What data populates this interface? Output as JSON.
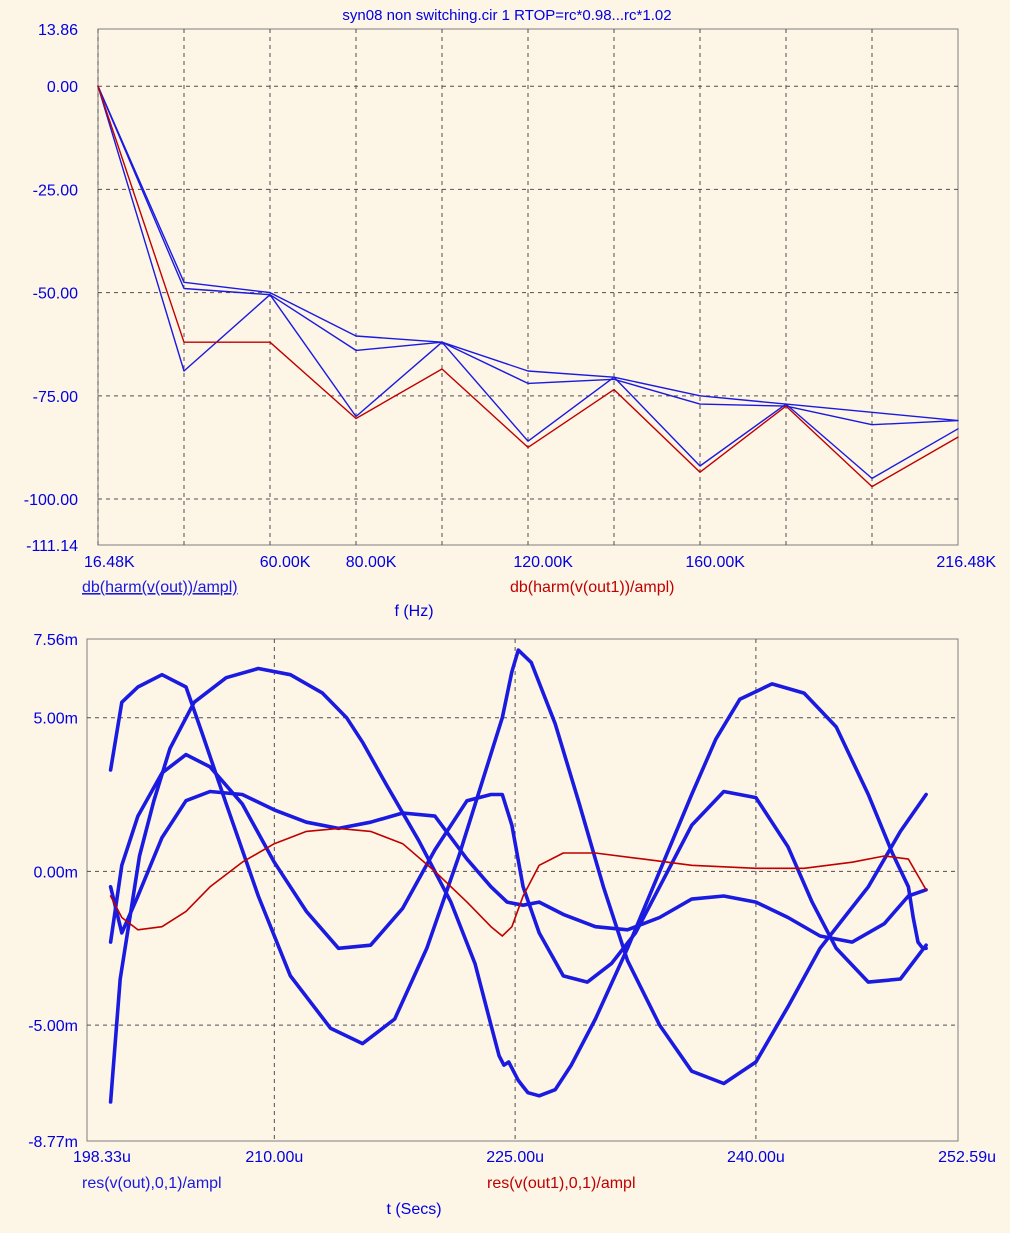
{
  "window": {
    "title": "syn08 non switching.cir 1 RTOP=rc*0.98...rc*1.02"
  },
  "colors": {
    "background": "#fdf5e6",
    "frame": "#808080",
    "grid": "#505050",
    "axis_text": "#0000e0",
    "blue_trace": "#1a1ae0",
    "red_trace": "#c00000"
  },
  "chart_data": [
    {
      "type": "line",
      "title": "syn08 non switching.cir 1 RTOP=rc*0.98...rc*1.02",
      "xlabel": "f (Hz)",
      "ylabel": "",
      "xlim": [
        16480,
        216480
      ],
      "ylim": [
        -111.14,
        13.86
      ],
      "grid": true,
      "x_tick_labels": [
        {
          "x": 16480,
          "label": "16.48K"
        },
        {
          "x": 60000,
          "label": "60.00K"
        },
        {
          "x": 80000,
          "label": "80.00K"
        },
        {
          "x": 120000,
          "label": "120.00K"
        },
        {
          "x": 160000,
          "label": "160.00K"
        },
        {
          "x": 216480,
          "label": "216.48K"
        }
      ],
      "x_grid": [
        16480,
        36480,
        56480,
        76480,
        96480,
        116480,
        136480,
        156480,
        176480,
        196480
      ],
      "y_tick_labels": [
        {
          "y": 13.86,
          "label": "13.86"
        },
        {
          "y": 0,
          "label": "0.00"
        },
        {
          "y": -25,
          "label": "-25.00"
        },
        {
          "y": -50,
          "label": "-50.00"
        },
        {
          "y": -75,
          "label": "-75.00"
        },
        {
          "y": -100,
          "label": "-100.00"
        },
        {
          "y": -111.14,
          "label": "-111.14"
        }
      ],
      "y_grid": [
        0,
        -25,
        -50,
        -75,
        -100
      ],
      "legend": [
        {
          "label": "db(harm(v(out))/ampl)",
          "color": "blue",
          "underlined": true,
          "position": "bottom-left"
        },
        {
          "label": "db(harm(v(out1))/ampl)",
          "color": "red",
          "underlined": false,
          "position": "bottom-center"
        }
      ],
      "x": [
        16480,
        36480,
        56480,
        76480,
        96480,
        116480,
        136480,
        156480,
        176480,
        196480,
        216480
      ],
      "series": [
        {
          "color": "blue",
          "values": [
            0,
            -47.5,
            -50,
            -60.5,
            -62,
            -69,
            -70.5,
            -75,
            -77,
            -79,
            -81
          ]
        },
        {
          "color": "blue",
          "values": [
            0,
            -49,
            -50.5,
            -64,
            -62,
            -72,
            -71,
            -77,
            -77.5,
            -82,
            -81
          ]
        },
        {
          "color": "blue",
          "values": [
            0,
            -69,
            -50.5,
            -80,
            -62,
            -86,
            -70.5,
            -92,
            -77,
            -95,
            -83
          ]
        },
        {
          "color": "red",
          "values": [
            0,
            -62,
            -62,
            -80.5,
            -68.5,
            -87.5,
            -73.5,
            -93.5,
            -77.5,
            -97,
            -85
          ]
        }
      ]
    },
    {
      "type": "line",
      "title": "",
      "xlabel": "t (Secs)",
      "ylabel": "",
      "xlim": [
        198.33,
        252.59
      ],
      "x_unit": "us",
      "ylim": [
        -8.77,
        7.56
      ],
      "y_unit": "mV",
      "grid": true,
      "x_tick_labels": [
        {
          "x": 198.33,
          "label": "198.33u"
        },
        {
          "x": 210.0,
          "label": "210.00u"
        },
        {
          "x": 225.0,
          "label": "225.00u"
        },
        {
          "x": 240.0,
          "label": "240.00u"
        },
        {
          "x": 252.59,
          "label": "252.59u"
        }
      ],
      "x_grid": [
        210.0,
        225.0,
        240.0
      ],
      "y_tick_labels": [
        {
          "y": 7.56,
          "label": "7.56m"
        },
        {
          "y": 5.0,
          "label": "5.00m"
        },
        {
          "y": 0,
          "label": "0.00m"
        },
        {
          "y": -5.0,
          "label": "-5.00m"
        },
        {
          "y": -8.77,
          "label": "-8.77m"
        }
      ],
      "y_grid": [
        5.0,
        0,
        -5.0
      ],
      "legend": [
        {
          "label": "res(v(out),0,1)/ampl",
          "color": "blue",
          "underlined": false,
          "position": "bottom-left"
        },
        {
          "label": "res(v(out1),0,1)/ampl",
          "color": "red",
          "underlined": false,
          "position": "bottom-center"
        }
      ],
      "series": [
        {
          "color": "blue",
          "x": [
            199.8,
            200.1,
            200.4,
            201.0,
            201.6,
            202.5,
            203.5,
            205.0,
            207.0,
            209.0,
            211.0,
            213.0,
            214.5,
            215.5,
            217.0,
            219.0,
            221.0,
            222.5,
            223.5,
            224.0,
            224.3,
            224.6,
            224.9,
            225.2,
            225.5,
            225.8,
            226.5,
            227.5,
            228.5,
            230.0,
            232.0,
            234.0,
            236.0,
            237.5,
            239.0,
            241.0,
            243.0,
            245.0,
            247.0,
            248.5,
            249.5,
            249.8,
            250.1,
            250.4,
            250.6
          ],
          "values": [
            -7.5,
            -5.5,
            -3.5,
            -1.5,
            0.5,
            2.3,
            4.0,
            5.5,
            6.3,
            6.6,
            6.4,
            5.8,
            5.0,
            4.2,
            2.8,
            1.0,
            -1.0,
            -3.0,
            -5.0,
            -6.0,
            -6.3,
            -6.2,
            -6.5,
            -6.8,
            -7.0,
            -7.2,
            -7.3,
            -7.1,
            -6.3,
            -4.8,
            -2.5,
            0.0,
            2.5,
            4.3,
            5.6,
            6.1,
            5.8,
            4.7,
            2.5,
            0.6,
            -0.5,
            -1.5,
            -2.3,
            -2.5,
            -2.5
          ]
        },
        {
          "color": "blue",
          "x": [
            199.8,
            200.5,
            201.5,
            203.0,
            204.5,
            205.5,
            207.0,
            209.0,
            211.0,
            213.5,
            215.5,
            217.5,
            219.5,
            221.5,
            223.0,
            224.2,
            224.8,
            225.2,
            226.0,
            227.5,
            229.0,
            230.5,
            232.0,
            234.0,
            236.0,
            238.0,
            240.0,
            242.0,
            244.0,
            245.5,
            247.0,
            249.0,
            250.6
          ],
          "values": [
            3.3,
            5.5,
            6.0,
            6.4,
            6.0,
            4.5,
            2.2,
            -0.8,
            -3.4,
            -5.1,
            -5.6,
            -4.8,
            -2.5,
            0.5,
            3.0,
            5.0,
            6.5,
            7.2,
            6.8,
            4.8,
            2.2,
            -0.5,
            -2.9,
            -5.0,
            -6.5,
            -6.9,
            -6.2,
            -4.4,
            -2.5,
            -1.5,
            -0.5,
            1.3,
            2.5
          ]
        },
        {
          "color": "blue",
          "x": [
            199.8,
            200.5,
            201.5,
            203.0,
            204.5,
            206.0,
            208.0,
            210.0,
            212.0,
            214.0,
            216.0,
            218.0,
            220.0,
            222.0,
            223.5,
            224.2,
            224.8,
            225.5,
            226.5,
            228.0,
            229.5,
            231.0,
            232.5,
            234.0,
            236.0,
            238.0,
            240.0,
            242.0,
            243.5,
            245.0,
            247.0,
            249.0,
            250.6
          ],
          "values": [
            -2.3,
            0.2,
            1.8,
            3.2,
            3.8,
            3.4,
            2.2,
            0.3,
            -1.3,
            -2.5,
            -2.4,
            -1.2,
            0.7,
            2.3,
            2.5,
            2.5,
            1.5,
            -0.5,
            -2.0,
            -3.4,
            -3.6,
            -3.0,
            -2.0,
            -0.5,
            1.5,
            2.6,
            2.4,
            0.8,
            -1.0,
            -2.5,
            -3.6,
            -3.5,
            -2.4
          ]
        },
        {
          "color": "blue",
          "x": [
            199.8,
            200.5,
            201.5,
            203.0,
            204.5,
            206.0,
            208.0,
            210.0,
            212.0,
            214.0,
            216.0,
            218.0,
            220.0,
            222.0,
            223.5,
            224.5,
            225.5,
            226.5,
            228.0,
            230.0,
            232.0,
            234.0,
            236.0,
            238.0,
            240.0,
            242.0,
            244.0,
            246.0,
            248.0,
            249.5,
            250.6
          ],
          "values": [
            -0.5,
            -2.0,
            -0.8,
            1.1,
            2.3,
            2.6,
            2.5,
            2.0,
            1.6,
            1.4,
            1.6,
            1.9,
            1.8,
            0.4,
            -0.5,
            -1.0,
            -1.1,
            -1.0,
            -1.4,
            -1.8,
            -1.9,
            -1.5,
            -0.9,
            -0.8,
            -1.0,
            -1.5,
            -2.1,
            -2.3,
            -1.7,
            -0.8,
            -0.6
          ]
        },
        {
          "color": "red",
          "x": [
            199.8,
            200.5,
            201.5,
            203.0,
            204.5,
            206.0,
            208.0,
            210.0,
            212.0,
            214.0,
            216.0,
            218.0,
            220.0,
            222.0,
            223.5,
            224.2,
            224.8,
            225.5,
            226.5,
            228.0,
            230.0,
            233.0,
            236.0,
            240.0,
            243.0,
            246.0,
            248.0,
            249.5,
            250.6
          ],
          "values": [
            -0.8,
            -1.5,
            -1.9,
            -1.8,
            -1.3,
            -0.5,
            0.3,
            0.9,
            1.3,
            1.4,
            1.3,
            0.9,
            0.0,
            -1.0,
            -1.8,
            -2.1,
            -1.8,
            -0.8,
            0.2,
            0.6,
            0.6,
            0.4,
            0.2,
            0.1,
            0.1,
            0.3,
            0.5,
            0.4,
            -0.6
          ]
        }
      ]
    }
  ]
}
